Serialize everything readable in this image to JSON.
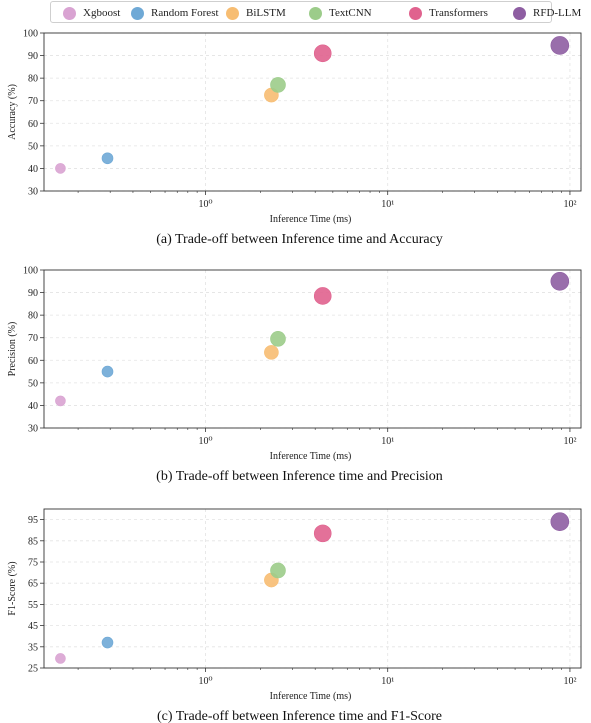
{
  "legend": [
    {
      "name": "Xgboost",
      "color": "#d9a3d2"
    },
    {
      "name": "Random Forest",
      "color": "#6fa9d6"
    },
    {
      "name": "BiLSTM",
      "color": "#f7bd72"
    },
    {
      "name": "TextCNN",
      "color": "#9ccc8a"
    },
    {
      "name": "Transformers",
      "color": "#e0628e"
    },
    {
      "name": "RFD-LLM",
      "color": "#8e5ea2"
    }
  ],
  "chart_data": [
    {
      "type": "scatter",
      "caption": "(a) Trade-off between Inference time and Accuracy",
      "xlabel": "Inference Time (ms)",
      "ylabel": "Accuracy (%)",
      "xscale": "log",
      "xlim": [
        0.13,
        115
      ],
      "ylim": [
        30,
        100
      ],
      "yticks": [
        30,
        40,
        50,
        60,
        70,
        80,
        90,
        100
      ],
      "xticks": [
        {
          "value": 1,
          "label": "10⁰"
        },
        {
          "value": 10,
          "label": "10¹"
        },
        {
          "value": 100,
          "label": "10²"
        }
      ],
      "grid": true,
      "series": [
        {
          "name": "Xgboost",
          "x": 0.16,
          "y": 40
        },
        {
          "name": "Random Forest",
          "x": 0.29,
          "y": 44.5
        },
        {
          "name": "BiLSTM",
          "x": 2.3,
          "y": 72.5
        },
        {
          "name": "TextCNN",
          "x": 2.5,
          "y": 77
        },
        {
          "name": "Transformers",
          "x": 4.4,
          "y": 91
        },
        {
          "name": "RFD-LLM",
          "x": 88,
          "y": 94.5
        }
      ]
    },
    {
      "type": "scatter",
      "caption": "(b) Trade-off between Inference time and Precision",
      "xlabel": "Inference Time (ms)",
      "ylabel": "Precision (%)",
      "xscale": "log",
      "xlim": [
        0.13,
        115
      ],
      "ylim": [
        30,
        100
      ],
      "yticks": [
        30,
        40,
        50,
        60,
        70,
        80,
        90,
        100
      ],
      "xticks": [
        {
          "value": 1,
          "label": "10⁰"
        },
        {
          "value": 10,
          "label": "10¹"
        },
        {
          "value": 100,
          "label": "10²"
        }
      ],
      "grid": true,
      "series": [
        {
          "name": "Xgboost",
          "x": 0.16,
          "y": 42
        },
        {
          "name": "Random Forest",
          "x": 0.29,
          "y": 55
        },
        {
          "name": "BiLSTM",
          "x": 2.3,
          "y": 63.5
        },
        {
          "name": "TextCNN",
          "x": 2.5,
          "y": 69.5
        },
        {
          "name": "Transformers",
          "x": 4.4,
          "y": 88.5
        },
        {
          "name": "RFD-LLM",
          "x": 88,
          "y": 95
        }
      ]
    },
    {
      "type": "scatter",
      "caption": "(c) Trade-off between Inference time and F1-Score",
      "xlabel": "Inference Time (ms)",
      "ylabel": "F1-Score (%)",
      "xscale": "log",
      "xlim": [
        0.13,
        115
      ],
      "ylim": [
        25,
        100
      ],
      "yticks": [
        25,
        35,
        45,
        55,
        65,
        75,
        85,
        95
      ],
      "xticks": [
        {
          "value": 1,
          "label": "10⁰"
        },
        {
          "value": 10,
          "label": "10¹"
        },
        {
          "value": 100,
          "label": "10²"
        }
      ],
      "grid": true,
      "series": [
        {
          "name": "Xgboost",
          "x": 0.16,
          "y": 29.5
        },
        {
          "name": "Random Forest",
          "x": 0.29,
          "y": 37
        },
        {
          "name": "BiLSTM",
          "x": 2.3,
          "y": 66.5
        },
        {
          "name": "TextCNN",
          "x": 2.5,
          "y": 71
        },
        {
          "name": "Transformers",
          "x": 4.4,
          "y": 88.5
        },
        {
          "name": "RFD-LLM",
          "x": 88,
          "y": 94
        }
      ]
    }
  ]
}
